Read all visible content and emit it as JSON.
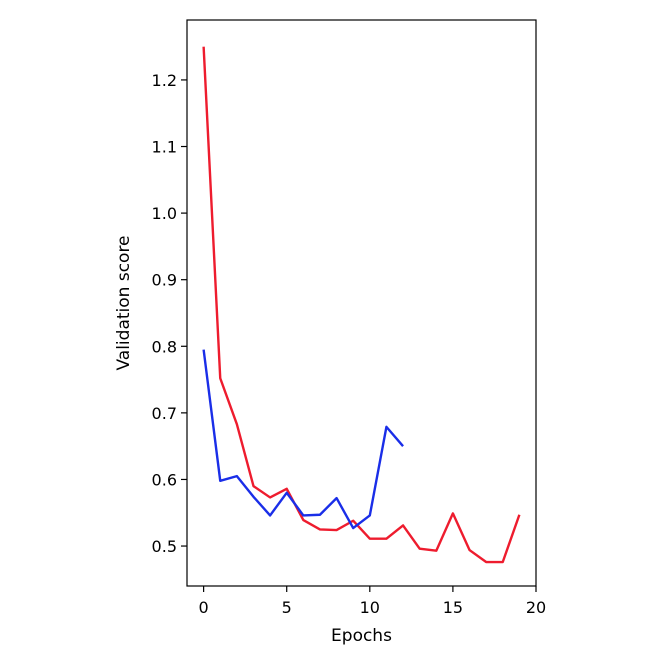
{
  "chart_data": {
    "type": "line",
    "title": "",
    "xlabel": "Epochs",
    "ylabel": "Validation score",
    "xlim": [
      -1,
      20
    ],
    "ylim": [
      0.44,
      1.29
    ],
    "xticks": [
      0,
      5,
      10,
      15,
      20
    ],
    "xtick_labels": [
      "0",
      "5",
      "10",
      "15",
      "20"
    ],
    "yticks": [
      0.5,
      0.6,
      0.7,
      0.8,
      0.9,
      1.0,
      1.1,
      1.2
    ],
    "ytick_labels": [
      "0.5",
      "0.6",
      "0.7",
      "0.8",
      "0.9",
      "1.0",
      "1.1",
      "1.2"
    ],
    "grid": false,
    "legend": "none",
    "series": [
      {
        "color": "#ee1c2e",
        "x": [
          0,
          1,
          2,
          3,
          4,
          5,
          6,
          7,
          8,
          9,
          10,
          11,
          12,
          13,
          14,
          15,
          16,
          17,
          18,
          19
        ],
        "y": [
          1.25,
          0.752,
          0.683,
          0.59,
          0.573,
          0.586,
          0.539,
          0.525,
          0.524,
          0.538,
          0.511,
          0.511,
          0.531,
          0.496,
          0.493,
          0.549,
          0.494,
          0.476,
          0.476,
          0.547
        ]
      },
      {
        "color": "#1a2ee8",
        "x": [
          0,
          1,
          2,
          3,
          4,
          5,
          6,
          7,
          8,
          9,
          10,
          11,
          12
        ],
        "y": [
          0.795,
          0.598,
          0.605,
          0.574,
          0.546,
          0.58,
          0.546,
          0.547,
          0.572,
          0.527,
          0.546,
          0.679,
          0.65
        ]
      }
    ]
  }
}
